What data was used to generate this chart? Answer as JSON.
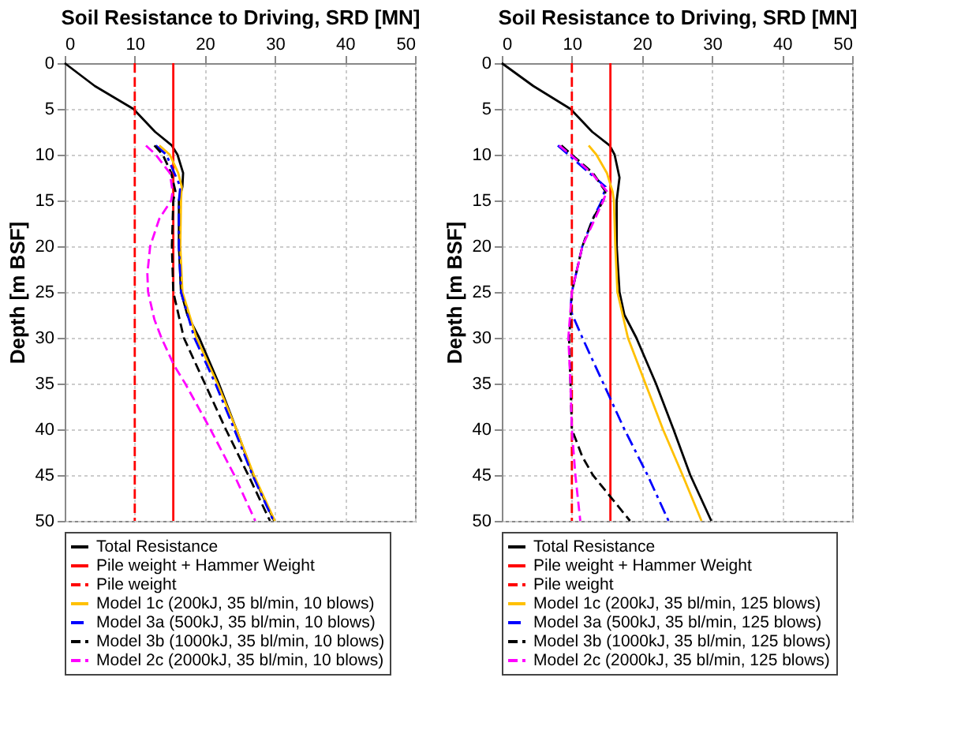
{
  "chart_data": [
    {
      "type": "line",
      "xlabel": "Soil Resistance to Driving, SRD [MN]",
      "ylabel": "Depth [m BSF]",
      "xlim": [
        0,
        50
      ],
      "xticks": [
        0,
        10,
        20,
        30,
        40,
        50
      ],
      "ylim": [
        50,
        0
      ],
      "yticks": [
        0,
        5,
        10,
        15,
        20,
        25,
        30,
        35,
        40,
        45,
        50
      ],
      "grid": true,
      "legend": "bottom",
      "series": [
        {
          "name": "Total Resistance",
          "color": "#000000",
          "line_style": "solid",
          "x": [
            0,
            4.3,
            9.8,
            12.9,
            15.3,
            16.1,
            16.9,
            16.8,
            16.3,
            16.3,
            16.6,
            17.5,
            19.2,
            22,
            24.5,
            26.9,
            29.9
          ],
          "values": [
            0,
            2.5,
            5,
            7.5,
            9,
            10,
            12,
            13.5,
            15,
            20,
            25,
            27.5,
            30,
            35,
            40,
            45,
            50
          ]
        },
        {
          "name": "Pile weight + Hammer Weight",
          "color": "#ff0000",
          "line_style": "solid",
          "x": [
            15.5,
            15.5
          ],
          "values": [
            0,
            50
          ]
        },
        {
          "name": "Pile weight",
          "color": "#ff0000",
          "line_style": "dashed",
          "x": [
            10,
            10
          ],
          "values": [
            0,
            50
          ]
        },
        {
          "name": "Model 1c (200kJ, 35 bl/min, 10 blows)",
          "color": "#ffc000",
          "line_style": "solid",
          "x": [
            13.5,
            15,
            16.2,
            16.7,
            16.6,
            16.5,
            16.8,
            18.8,
            21.8,
            24.5,
            27,
            30
          ],
          "values": [
            9,
            10,
            12,
            13.5,
            15,
            20,
            25,
            30,
            35,
            40,
            45,
            50
          ]
        },
        {
          "name": "Model 3a (500kJ, 35 bl/min, 10 blows)",
          "color": "#0000ff",
          "line_style": "dashdot",
          "x": [
            13,
            14.5,
            16.5,
            16.3,
            16.3,
            16.6,
            18.5,
            21.5,
            24.2,
            26.8,
            29.8
          ],
          "values": [
            9,
            10,
            13.5,
            15,
            20,
            25,
            30,
            35,
            40,
            45,
            50
          ]
        },
        {
          "name": "Model 3b (1000kJ, 35 bl/min, 10 blows)",
          "color": "#000000",
          "line_style": "dashed",
          "x": [
            12.8,
            14,
            15.2,
            15.8,
            15.5,
            15.3,
            15.5,
            17,
            20,
            23,
            26.2,
            29.3
          ],
          "values": [
            9,
            10,
            12,
            14,
            15,
            20,
            25,
            30,
            35,
            40,
            45,
            50
          ]
        },
        {
          "name": "Model 2c (2000kJ, 35 bl/min, 10 blows)",
          "color": "#ff00ff",
          "line_style": "dashed",
          "x": [
            11.6,
            13,
            15,
            15.4,
            15.2,
            13.5,
            12.2,
            11.8,
            11.9,
            12.8,
            13.8,
            15.6,
            17.2,
            20.8,
            24.2,
            27.2
          ],
          "values": [
            9,
            10,
            12,
            14,
            15,
            17,
            20,
            23,
            25,
            28,
            30,
            33,
            35,
            40,
            45,
            50
          ]
        }
      ]
    },
    {
      "type": "line",
      "xlabel": "Soil Resistance to Driving, SRD [MN]",
      "ylabel": "Depth [m BSF]",
      "xlim": [
        0,
        50
      ],
      "xticks": [
        0,
        10,
        20,
        30,
        40,
        50
      ],
      "ylim": [
        50,
        0
      ],
      "yticks": [
        0,
        5,
        10,
        15,
        20,
        25,
        30,
        35,
        40,
        45,
        50
      ],
      "grid": true,
      "legend": "bottom",
      "series": [
        {
          "name": "Total Resistance",
          "color": "#000000",
          "line_style": "solid",
          "x": [
            0,
            4.5,
            9.8,
            12.9,
            15.4,
            16.1,
            16.8,
            16.4,
            16.4,
            16.8,
            17.5,
            19.2,
            22,
            24.5,
            26.9,
            29.9
          ],
          "values": [
            0,
            2.5,
            5,
            7.5,
            9,
            10,
            12.5,
            15,
            20,
            25,
            27.5,
            30,
            35,
            40,
            45,
            50
          ]
        },
        {
          "name": "Pile weight + Hammer Weight",
          "color": "#ff0000",
          "line_style": "solid",
          "x": [
            15.5,
            15.5
          ],
          "values": [
            0,
            50
          ]
        },
        {
          "name": "Pile weight",
          "color": "#ff0000",
          "line_style": "dashed",
          "x": [
            10,
            10
          ],
          "values": [
            0,
            50
          ]
        },
        {
          "name": "Model 1c (200kJ, 35 bl/min, 125 blows)",
          "color": "#ffc000",
          "line_style": "solid",
          "x": [
            12.4,
            13.5,
            15,
            15.8,
            16,
            16.2,
            16.5,
            18,
            20.5,
            23,
            25.8,
            28.5
          ],
          "values": [
            9,
            10,
            12,
            14,
            15,
            20,
            25,
            30,
            35,
            40,
            45,
            50
          ]
        },
        {
          "name": "Model 3a (500kJ, 35 bl/min, 125 blows)",
          "color": "#0000ff",
          "line_style": "dashdot",
          "x": [
            8,
            9.5,
            12.5,
            14.8,
            14.3,
            13,
            11.5,
            10,
            9.8,
            11.5,
            14.5,
            17.5,
            20.8,
            23.8
          ],
          "values": [
            9,
            10,
            12,
            13.5,
            15,
            17,
            20,
            25,
            27,
            30,
            35,
            40,
            45,
            50
          ]
        },
        {
          "name": "Model 3b (1000kJ, 35 bl/min, 125 blows)",
          "color": "#000000",
          "line_style": "dashed",
          "x": [
            8.5,
            10,
            13,
            14.8,
            14.5,
            13,
            11.5,
            10,
            9.8,
            9.6,
            9.8,
            10,
            11.5,
            13,
            18.3
          ],
          "values": [
            9,
            10,
            12,
            14,
            15,
            17,
            20,
            25,
            28,
            30,
            35,
            40,
            43,
            45,
            50
          ]
        },
        {
          "name": "Model 2c (2000kJ, 35 bl/min, 125 blows)",
          "color": "#ff00ff",
          "line_style": "dashed",
          "x": [
            8.2,
            9.8,
            12.8,
            15,
            14.5,
            11.5,
            10,
            9.5,
            9.8,
            10,
            10.5,
            11.2
          ],
          "values": [
            9,
            10,
            12,
            14,
            15,
            20,
            25,
            30,
            35,
            40,
            45,
            50
          ]
        }
      ]
    }
  ]
}
